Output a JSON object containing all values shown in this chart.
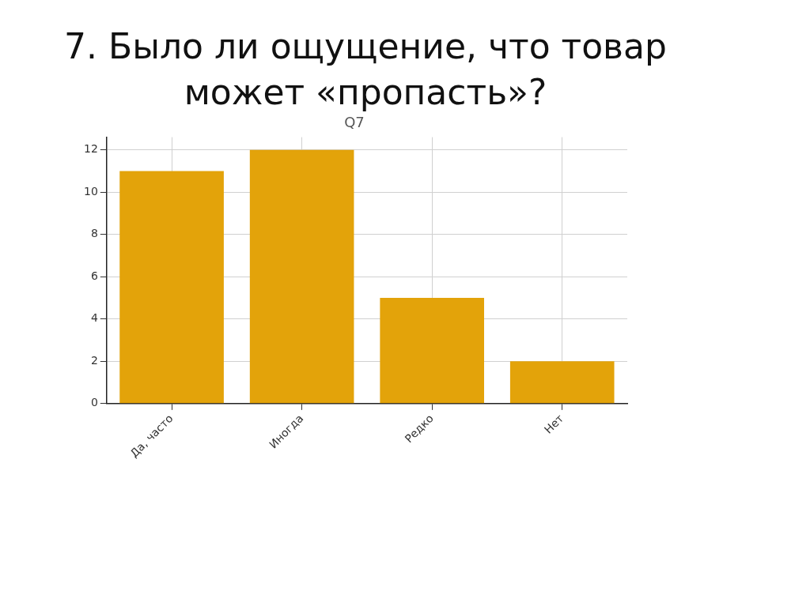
{
  "chart_data": {
    "type": "bar",
    "title": "7. Было ли ощущение, что товар может «пропасть»?",
    "subtitle": "Q7",
    "categories": [
      "Да, часто",
      "Иногда",
      "Редко",
      "Нет"
    ],
    "values": [
      11,
      12,
      5,
      2
    ],
    "color": "#e3a30a",
    "ylim": [
      0,
      12.6
    ],
    "yticks": [
      0,
      2,
      4,
      6,
      8,
      10,
      12
    ],
    "grid": true
  }
}
